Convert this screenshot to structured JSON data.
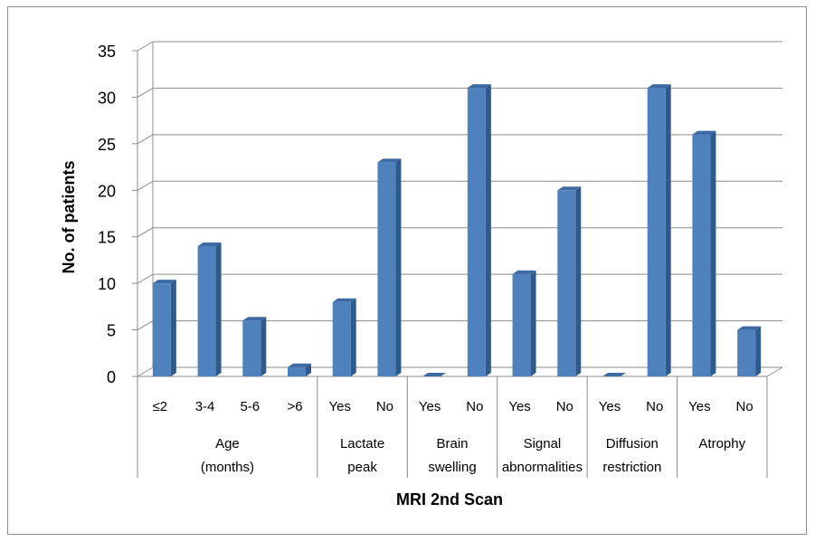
{
  "chart_data": {
    "type": "bar",
    "title": "",
    "xlabel": "MRI 2nd Scan",
    "ylabel": "No. of patients",
    "ylim": [
      0,
      35
    ],
    "yticks": [
      0,
      5,
      10,
      15,
      20,
      25,
      30,
      35
    ],
    "grid": true,
    "legend": "none",
    "bar_color": "#4f81bd",
    "groups": [
      {
        "label": "Age (months)",
        "label_lines": [
          "Age",
          "(months)"
        ],
        "categories": [
          "≤2",
          "3-4",
          "5-6",
          ">6"
        ],
        "values": [
          10,
          14,
          6,
          1
        ]
      },
      {
        "label": "Lactate peak",
        "label_lines": [
          "Lactate",
          "peak"
        ],
        "categories": [
          "Yes",
          "No"
        ],
        "values": [
          8,
          23
        ]
      },
      {
        "label": "Brain swelling",
        "label_lines": [
          "Brain",
          "swelling"
        ],
        "categories": [
          "Yes",
          "No"
        ],
        "values": [
          0,
          31
        ]
      },
      {
        "label": "Signal abnormalities",
        "label_lines": [
          "Signal",
          "abnormalities"
        ],
        "categories": [
          "Yes",
          "No"
        ],
        "values": [
          11,
          20
        ]
      },
      {
        "label": "Diffusion restriction",
        "label_lines": [
          "Diffusion",
          "restriction"
        ],
        "categories": [
          "Yes",
          "No"
        ],
        "values": [
          0,
          31
        ]
      },
      {
        "label": "Atrophy",
        "label_lines": [
          "Atrophy"
        ],
        "categories": [
          "Yes",
          "No"
        ],
        "values": [
          26,
          5
        ]
      }
    ]
  }
}
